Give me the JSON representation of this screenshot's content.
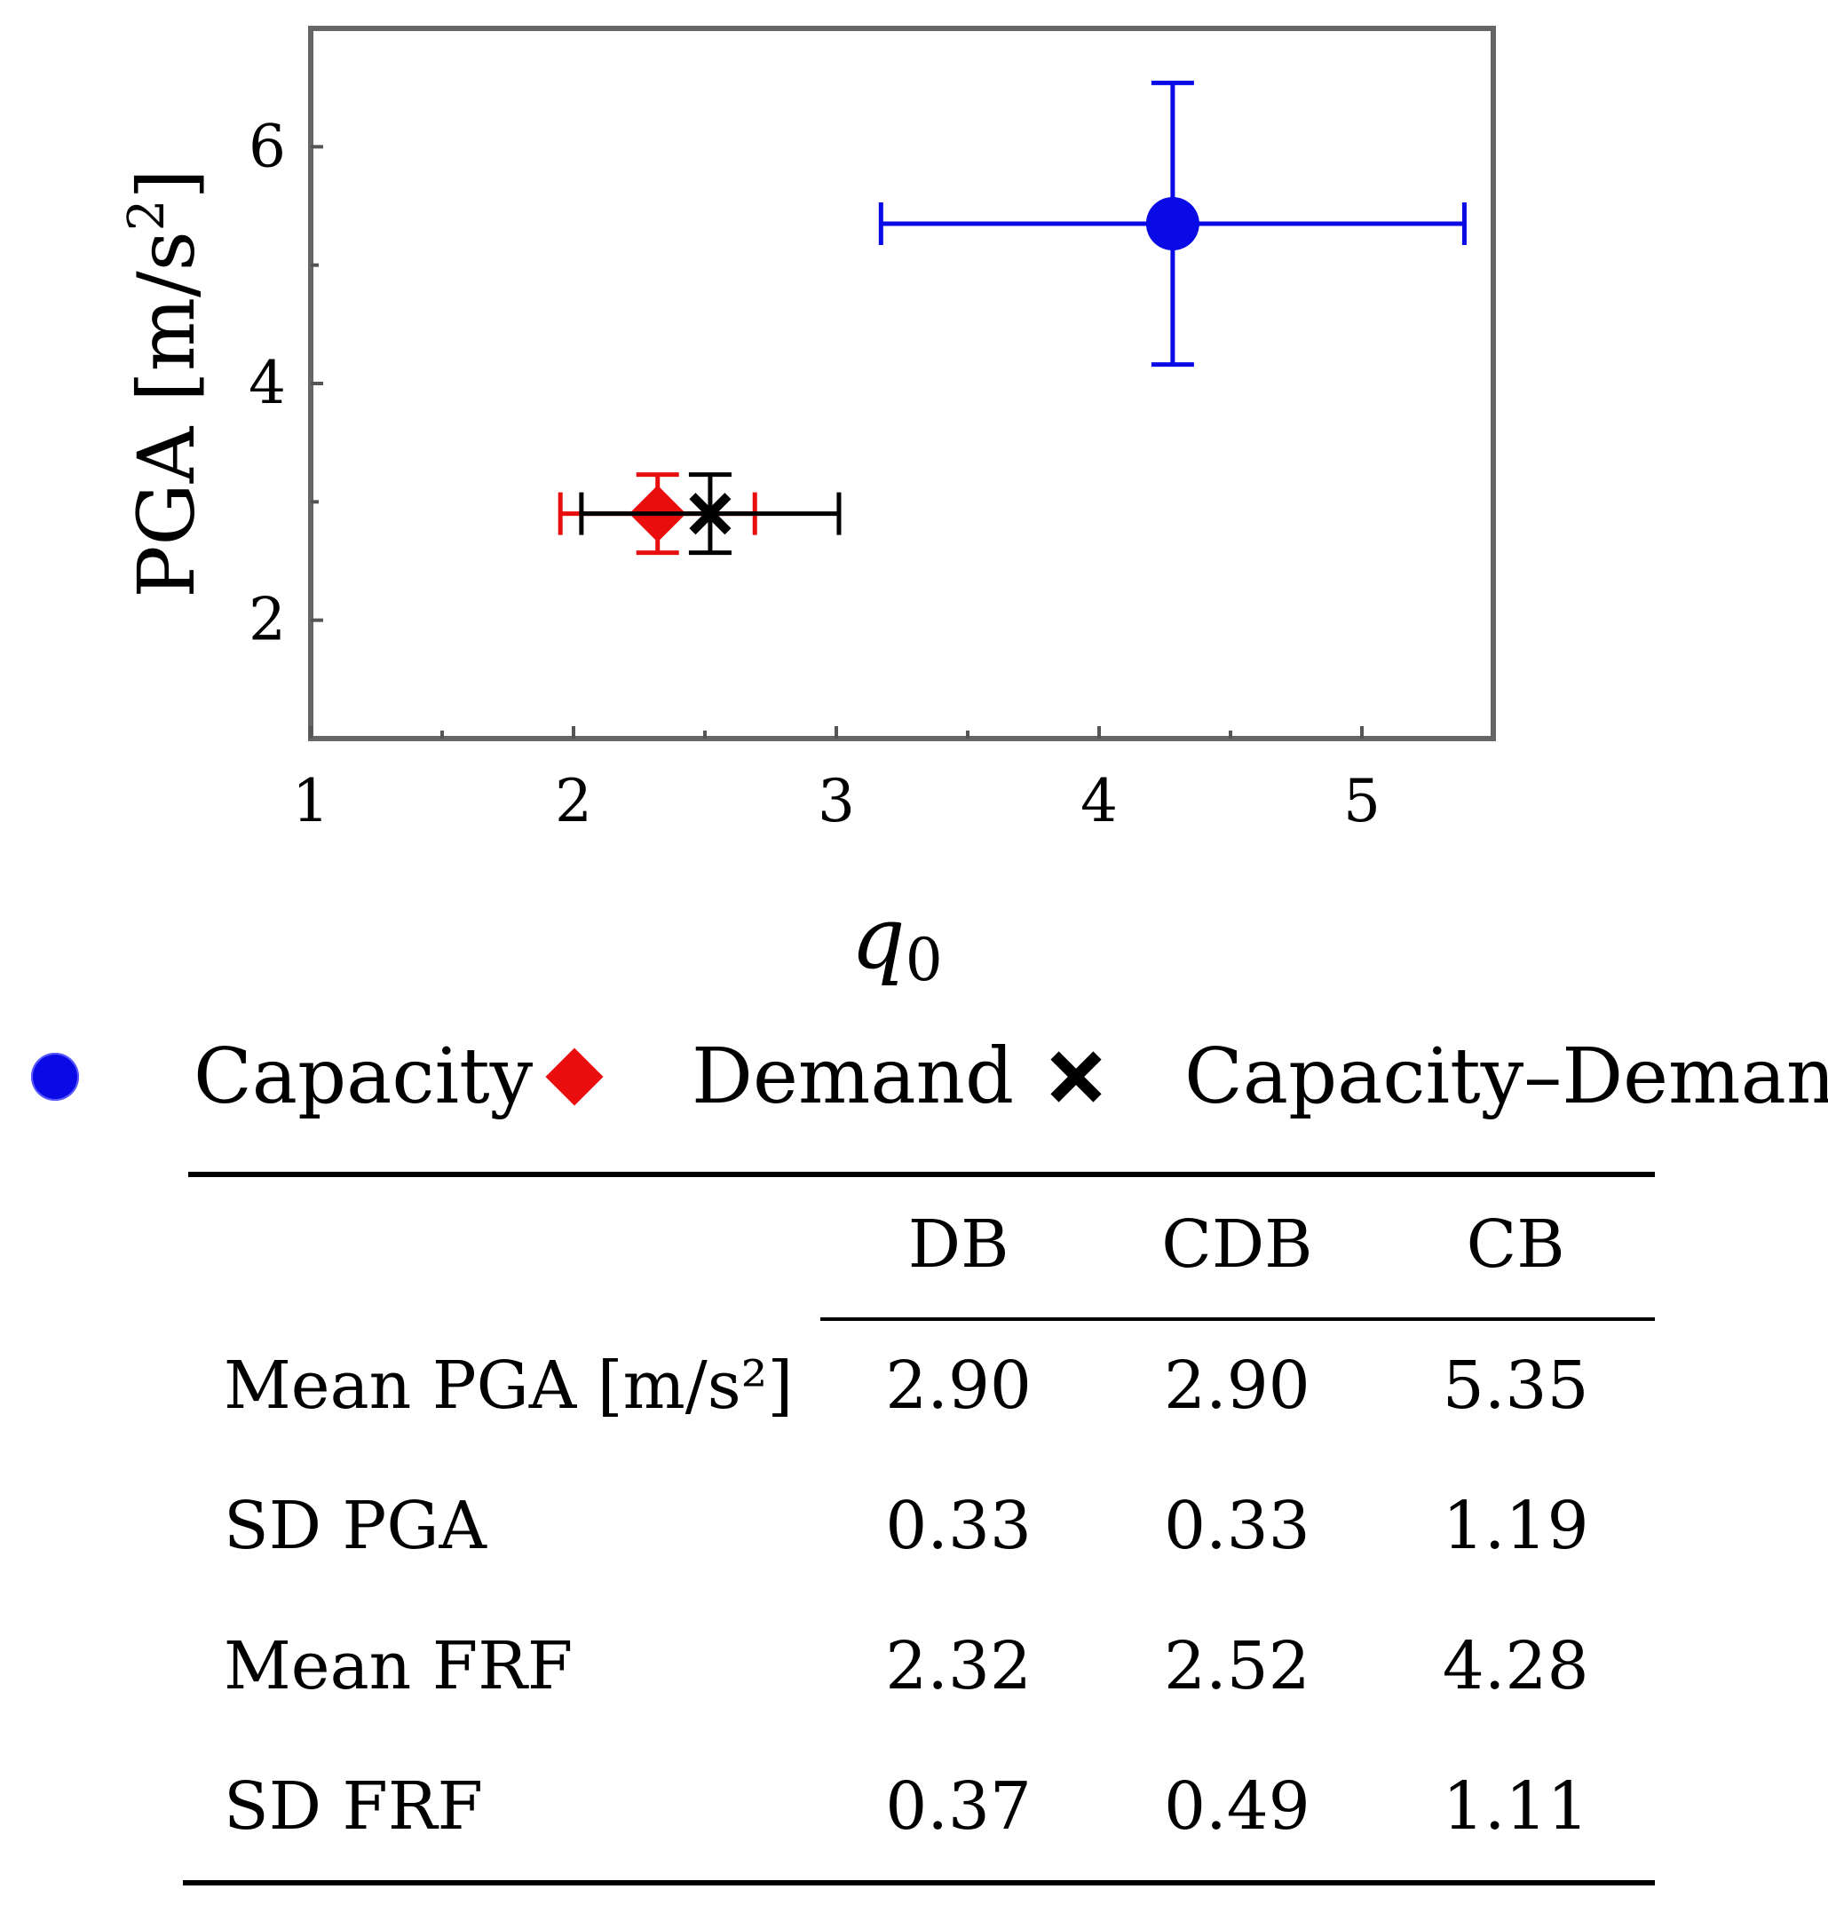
{
  "chart_data": {
    "type": "scatter",
    "xlabel": "q",
    "xlabel_subscript": "0",
    "ylabel": "PGA [m/s",
    "ylabel_superscript": "2",
    "ylabel_close": "]",
    "xlim": [
      1,
      5.5
    ],
    "ylim": [
      1,
      7
    ],
    "x_ticks_major": [
      1,
      2,
      3,
      4,
      5
    ],
    "x_tick_labels": [
      "1",
      "2",
      "3",
      "4",
      "5"
    ],
    "x_ticks_minor": [
      1.5,
      2.5,
      3.5,
      4.5
    ],
    "y_ticks_major": [
      2,
      4,
      6
    ],
    "y_tick_labels": [
      "2",
      "4",
      "6"
    ],
    "y_ticks_minor": [
      3,
      5
    ],
    "grid": false,
    "series": [
      {
        "name": "Capacity",
        "marker": "circle",
        "color": "#0a0ae6",
        "x": 4.28,
        "y": 5.35,
        "xerr": 1.11,
        "yerr": 1.19
      },
      {
        "name": "Demand",
        "marker": "diamond",
        "color": "#ea0d0d",
        "x": 2.32,
        "y": 2.9,
        "xerr": 0.37,
        "yerr": 0.33
      },
      {
        "name": "Capacity–Demand",
        "marker": "x",
        "color": "#000000",
        "x": 2.52,
        "y": 2.9,
        "xerr": 0.49,
        "yerr": 0.33
      }
    ]
  },
  "legend": {
    "items": [
      {
        "label": "Capacity"
      },
      {
        "label": "Demand"
      },
      {
        "label": "Capacity–Demand"
      }
    ]
  },
  "table": {
    "columns": [
      "DB",
      "CDB",
      "CB"
    ],
    "rows": [
      {
        "label": "Mean PGA [m/s²]",
        "values": [
          "2.90",
          "2.90",
          "5.35"
        ]
      },
      {
        "label": "SD PGA",
        "values": [
          "0.33",
          "0.33",
          "1.19"
        ]
      },
      {
        "label": "Mean FRF",
        "values": [
          "2.32",
          "2.52",
          "4.28"
        ]
      },
      {
        "label": "SD FRF",
        "values": [
          "0.37",
          "0.49",
          "1.11"
        ]
      }
    ]
  }
}
